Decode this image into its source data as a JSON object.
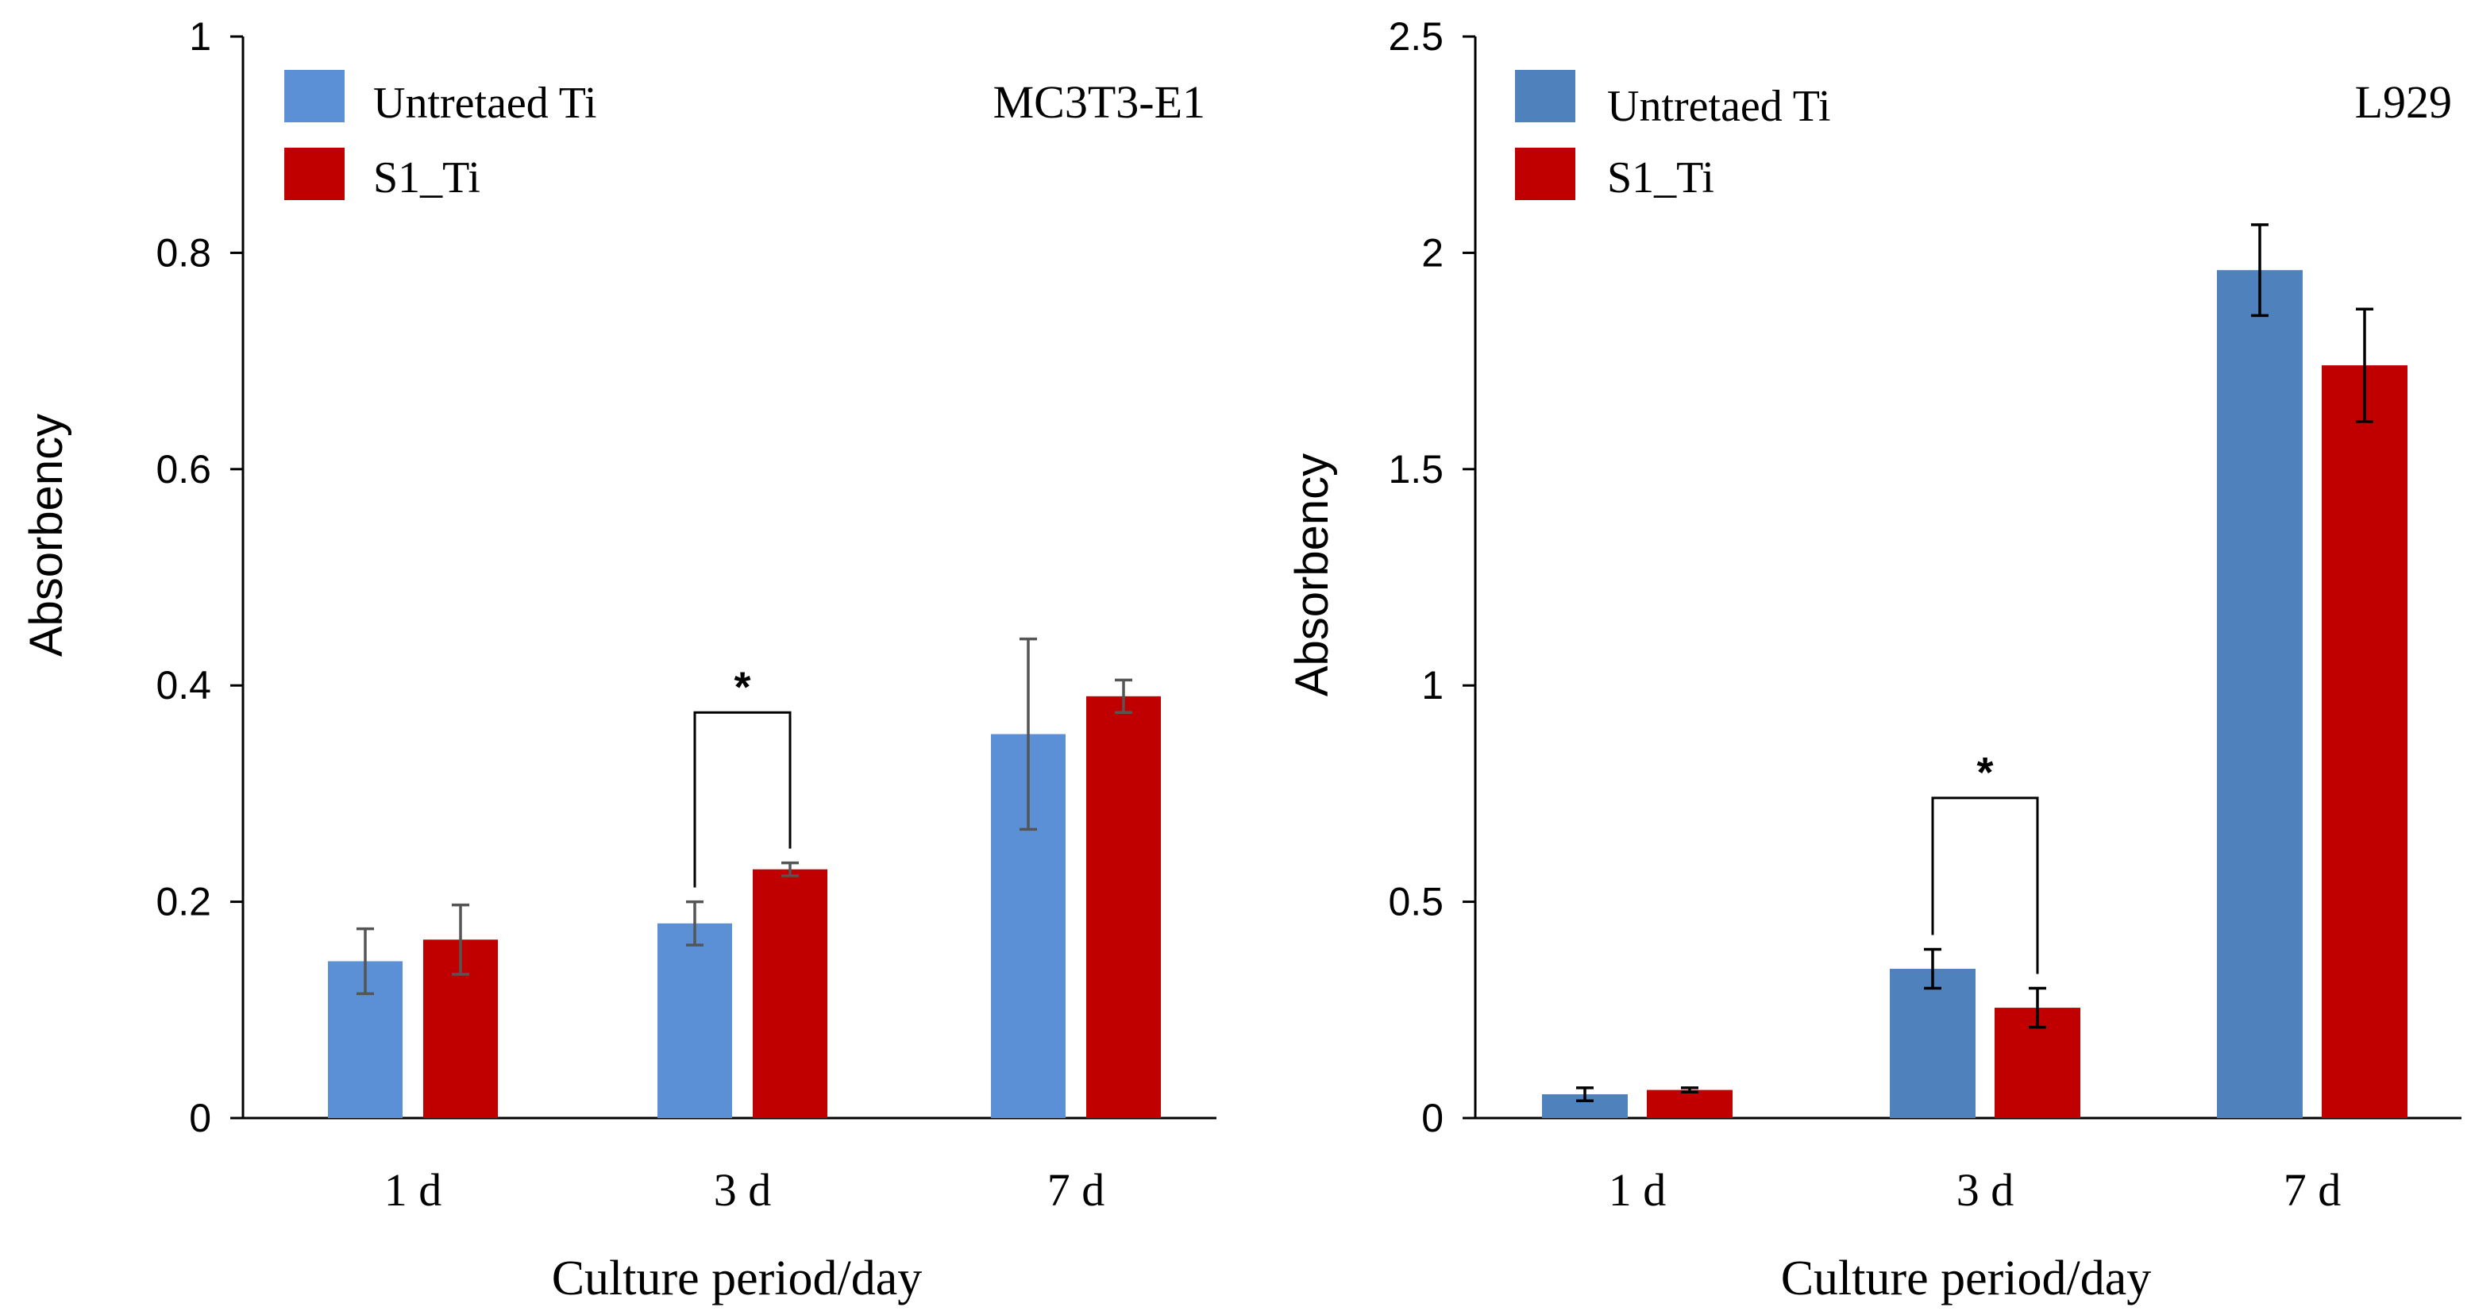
{
  "chart_data": [
    {
      "type": "bar",
      "panel_label": "MC3T3-E1",
      "categories": [
        "1 d",
        "3 d",
        "7 d"
      ],
      "series": [
        {
          "name": "Untretaed Ti",
          "color": "#5b8fd6",
          "values": [
            0.145,
            0.18,
            0.355
          ],
          "errors": [
            0.03,
            0.02,
            0.088
          ]
        },
        {
          "name": "S1_Ti",
          "color": "#c00000",
          "values": [
            0.165,
            0.23,
            0.39
          ],
          "errors": [
            0.032,
            0.006,
            0.015
          ]
        }
      ],
      "xlabel": "Culture period/day",
      "ylabel": "Absorbency",
      "ylim": [
        0,
        1
      ],
      "yticks": [
        0,
        0.2,
        0.4,
        0.6,
        0.8,
        1
      ],
      "ytick_labels": [
        "0",
        "0.2",
        "0.4",
        "0.6",
        "0.8",
        "1"
      ],
      "error_color": "#555555",
      "significance": {
        "category_index": 1,
        "label": "*",
        "bracket_top": 0.375
      },
      "legend_position": "top-left"
    },
    {
      "type": "bar",
      "panel_label": "L929",
      "categories": [
        "1 d",
        "3 d",
        "7 d"
      ],
      "series": [
        {
          "name": "Untretaed Ti",
          "color": "#4f81bd",
          "values": [
            0.055,
            0.345,
            1.96
          ],
          "errors": [
            0.015,
            0.045,
            0.105
          ]
        },
        {
          "name": "S1_Ti",
          "color": "#c00000",
          "values": [
            0.065,
            0.255,
            1.74
          ],
          "errors": [
            0.005,
            0.045,
            0.13
          ]
        }
      ],
      "xlabel": "Culture period/day",
      "ylabel": "Absorbency",
      "ylim": [
        0,
        2.5
      ],
      "yticks": [
        0,
        0.5,
        1,
        1.5,
        2,
        2.5
      ],
      "ytick_labels": [
        "0",
        "0.5",
        "1",
        "1.5",
        "2",
        "2.5"
      ],
      "error_color": "#000000",
      "significance": {
        "category_index": 1,
        "label": "*",
        "bracket_top": 0.74
      },
      "legend_position": "top-left"
    }
  ]
}
